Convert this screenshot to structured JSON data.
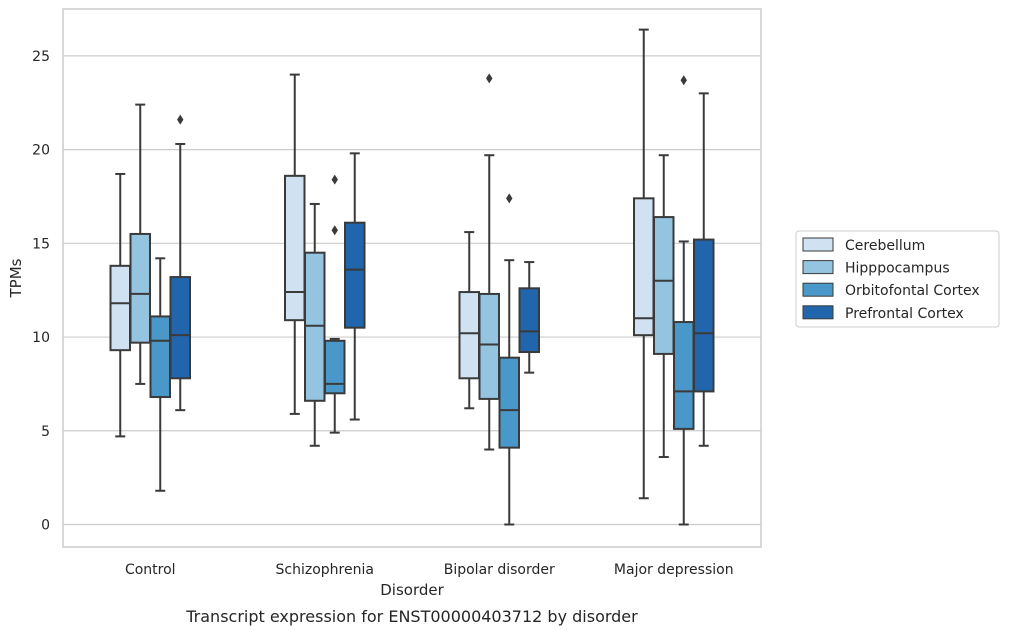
{
  "chart_data": {
    "type": "box",
    "title": "",
    "caption": "Transcript expression for ENST00000403712 by disorder",
    "xlabel": "Disorder",
    "ylabel": "TPMs",
    "ylim": [
      -1.2,
      27.5
    ],
    "yticks": [
      0,
      5,
      10,
      15,
      20,
      25
    ],
    "grid": "horizontal",
    "legend_placement": "right",
    "categories": [
      "Control",
      "Schizophrenia",
      "Bipolar disorder",
      "Major depression"
    ],
    "colors": [
      "#d0e1f2",
      "#94c4df",
      "#4a98c9",
      "#2166ac"
    ],
    "edge_color": "#3a3a3a",
    "series": [
      {
        "name": "Cerebellum",
        "boxes": [
          {
            "low": 4.7,
            "q1": 9.3,
            "median": 11.8,
            "q3": 13.8,
            "high": 18.7,
            "outliers": []
          },
          {
            "low": 5.9,
            "q1": 10.9,
            "median": 12.4,
            "q3": 18.6,
            "high": 24.0,
            "outliers": []
          },
          {
            "low": 6.2,
            "q1": 7.8,
            "median": 10.2,
            "q3": 12.4,
            "high": 15.6,
            "outliers": []
          },
          {
            "low": 1.4,
            "q1": 10.1,
            "median": 11.0,
            "q3": 17.4,
            "high": 26.4,
            "outliers": []
          }
        ]
      },
      {
        "name": "Hipppocampus",
        "boxes": [
          {
            "low": 7.5,
            "q1": 9.7,
            "median": 12.3,
            "q3": 15.5,
            "high": 22.4,
            "outliers": []
          },
          {
            "low": 4.2,
            "q1": 6.6,
            "median": 10.6,
            "q3": 14.5,
            "high": 17.1,
            "outliers": []
          },
          {
            "low": 4.0,
            "q1": 6.7,
            "median": 9.6,
            "q3": 12.3,
            "high": 19.7,
            "outliers": [
              23.8
            ]
          },
          {
            "low": 3.6,
            "q1": 9.1,
            "median": 13.0,
            "q3": 16.4,
            "high": 19.7,
            "outliers": []
          }
        ]
      },
      {
        "name": "Orbitofontal Cortex",
        "boxes": [
          {
            "low": 1.8,
            "q1": 6.8,
            "median": 9.8,
            "q3": 11.1,
            "high": 14.2,
            "outliers": []
          },
          {
            "low": 4.9,
            "q1": 7.0,
            "median": 7.5,
            "q3": 9.8,
            "high": 9.9,
            "outliers": [
              15.7,
              18.4
            ]
          },
          {
            "low": 0.0,
            "q1": 4.1,
            "median": 6.1,
            "q3": 8.9,
            "high": 14.1,
            "outliers": [
              17.4
            ]
          },
          {
            "low": 0.0,
            "q1": 5.1,
            "median": 7.1,
            "q3": 10.8,
            "high": 15.1,
            "outliers": [
              23.7
            ]
          }
        ]
      },
      {
        "name": "Prefrontal Cortex",
        "boxes": [
          {
            "low": 6.1,
            "q1": 7.8,
            "median": 10.1,
            "q3": 13.2,
            "high": 20.3,
            "outliers": [
              21.6
            ]
          },
          {
            "low": 5.6,
            "q1": 10.5,
            "median": 13.6,
            "q3": 16.1,
            "high": 19.8,
            "outliers": []
          },
          {
            "low": 8.1,
            "q1": 9.2,
            "median": 10.3,
            "q3": 12.6,
            "high": 14.0,
            "outliers": []
          },
          {
            "low": 4.2,
            "q1": 7.1,
            "median": 10.2,
            "q3": 15.2,
            "high": 23.0,
            "outliers": []
          }
        ]
      }
    ]
  }
}
